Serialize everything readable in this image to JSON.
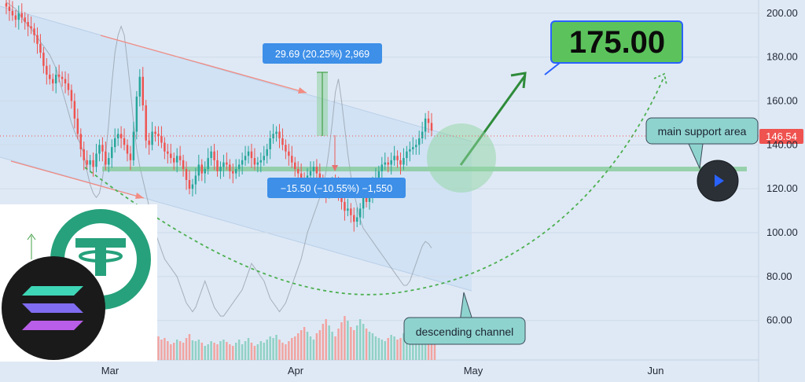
{
  "chart_data": {
    "type": "candlestick",
    "x_labels": [
      "Mar",
      "Apr",
      "May",
      "Jun"
    ],
    "y_ticks": [
      60,
      80,
      100,
      120,
      140,
      160,
      180,
      200
    ],
    "y_tick_labels": [
      "60.00",
      "80.00",
      "100.00",
      "120.00",
      "140.00",
      "160.00",
      "180.00",
      "200.00"
    ],
    "ylim": [
      42,
      206
    ],
    "last_price": 146.54,
    "last_price_label": "146.54",
    "support_level": 129,
    "target_price": 175,
    "target_label": "175.00",
    "closes": [
      203,
      201,
      199,
      197,
      200,
      198,
      196,
      194,
      193,
      190,
      186,
      182,
      176,
      172,
      170,
      168,
      172,
      171,
      170,
      168,
      165,
      160,
      152,
      145,
      138,
      133,
      131,
      133,
      130,
      136,
      140,
      137,
      131,
      134,
      139,
      143,
      145,
      143,
      140,
      136,
      133,
      146,
      162,
      171,
      158,
      142,
      140,
      146,
      145,
      144,
      141,
      137,
      136,
      134,
      132,
      135,
      133,
      129,
      124,
      120,
      122,
      126,
      131,
      127,
      129,
      134,
      137,
      133,
      128,
      130,
      132,
      131,
      128,
      127,
      129,
      131,
      133,
      135,
      137,
      134,
      131,
      132,
      133,
      135,
      138,
      143,
      145,
      146,
      143,
      140,
      137,
      135,
      132,
      129,
      127,
      125,
      124,
      126,
      128,
      130,
      127,
      124,
      121,
      118,
      120,
      123,
      121,
      117,
      114,
      110,
      111,
      108,
      105,
      107,
      111,
      116,
      114,
      118,
      122,
      125,
      128,
      131,
      132,
      131,
      133,
      135,
      133,
      131,
      134,
      137,
      138,
      139,
      140,
      143,
      146,
      152,
      150,
      146.5
    ],
    "volume": [
      28,
      32,
      30,
      25,
      34,
      22,
      30,
      27,
      40,
      45,
      36,
      33,
      46,
      30,
      28,
      26,
      38,
      34,
      30,
      36,
      41,
      28,
      52,
      60,
      44,
      22,
      26,
      24,
      30,
      38,
      46,
      33,
      26,
      28,
      34,
      36,
      30,
      42,
      38,
      33,
      32,
      55,
      68,
      60,
      40,
      26,
      24,
      28,
      36,
      30,
      26,
      28,
      24,
      20,
      22,
      26,
      24,
      22,
      28,
      33,
      25,
      24,
      26,
      22,
      18,
      20,
      24,
      22,
      20,
      24,
      26,
      23,
      20,
      18,
      22,
      26,
      20,
      24,
      28,
      22,
      18,
      20,
      24,
      22,
      26,
      30,
      28,
      32,
      26,
      22,
      20,
      24,
      28,
      30,
      34,
      38,
      42,
      36,
      30,
      26,
      34,
      38,
      46,
      52,
      44,
      36,
      30,
      40,
      48,
      56,
      50,
      42,
      38,
      44,
      52,
      46,
      40,
      36,
      34,
      30,
      28,
      26,
      24,
      28,
      32,
      30,
      26,
      28,
      34,
      36,
      30,
      28,
      26,
      32,
      36,
      34,
      30,
      28,
      26
    ],
    "overlay_line": [
      205,
      204,
      203,
      202,
      200,
      198,
      196,
      195,
      193,
      191,
      189,
      187,
      185,
      183,
      181,
      178,
      175,
      170,
      165,
      160,
      155,
      150,
      146,
      143,
      140,
      136,
      128,
      122,
      118,
      116,
      118,
      125,
      135,
      150,
      168,
      182,
      190,
      194,
      190,
      178,
      165,
      150,
      138,
      130,
      124,
      118,
      112,
      106,
      100,
      96,
      92,
      88,
      86,
      84,
      82,
      80,
      76,
      72,
      68,
      66,
      64,
      66,
      70,
      74,
      78,
      74,
      70,
      66,
      64,
      62,
      62,
      64,
      66,
      68,
      70,
      72,
      74,
      78,
      82,
      86,
      84,
      82,
      80,
      78,
      74,
      70,
      68,
      66,
      64,
      66,
      68,
      72,
      76,
      80,
      84,
      88,
      94,
      100,
      104,
      108,
      112,
      116,
      120,
      128,
      138,
      150,
      164,
      170,
      160,
      148,
      136,
      126,
      118,
      112,
      106,
      102,
      100,
      98,
      96,
      94,
      92,
      90,
      88,
      86,
      84,
      82,
      80,
      78,
      76,
      76,
      78,
      82,
      86,
      90,
      94,
      96,
      95,
      93
    ],
    "measure_up": {
      "label": "29.69 (20.25%) 2,969"
    },
    "measure_down": {
      "label": "−15.50 (−10.55%) −1,550"
    },
    "annotations": {
      "support": "main support area",
      "channel": "descending channel"
    }
  },
  "colors": {
    "background": "#dfe9f5",
    "up": "#26a69a",
    "down": "#ef5350",
    "target_box": "#5cc35c",
    "target_border": "#2962ff",
    "measure_box": "#3d8fe8",
    "callout": "#8fd3cf",
    "dashed_curve": "#4caf50",
    "arrow": "#2e8b3a",
    "support_band": "#7fc893"
  },
  "icons": {
    "play": "play-icon",
    "tether": "tether-logo-icon",
    "solana": "solana-logo-icon"
  }
}
